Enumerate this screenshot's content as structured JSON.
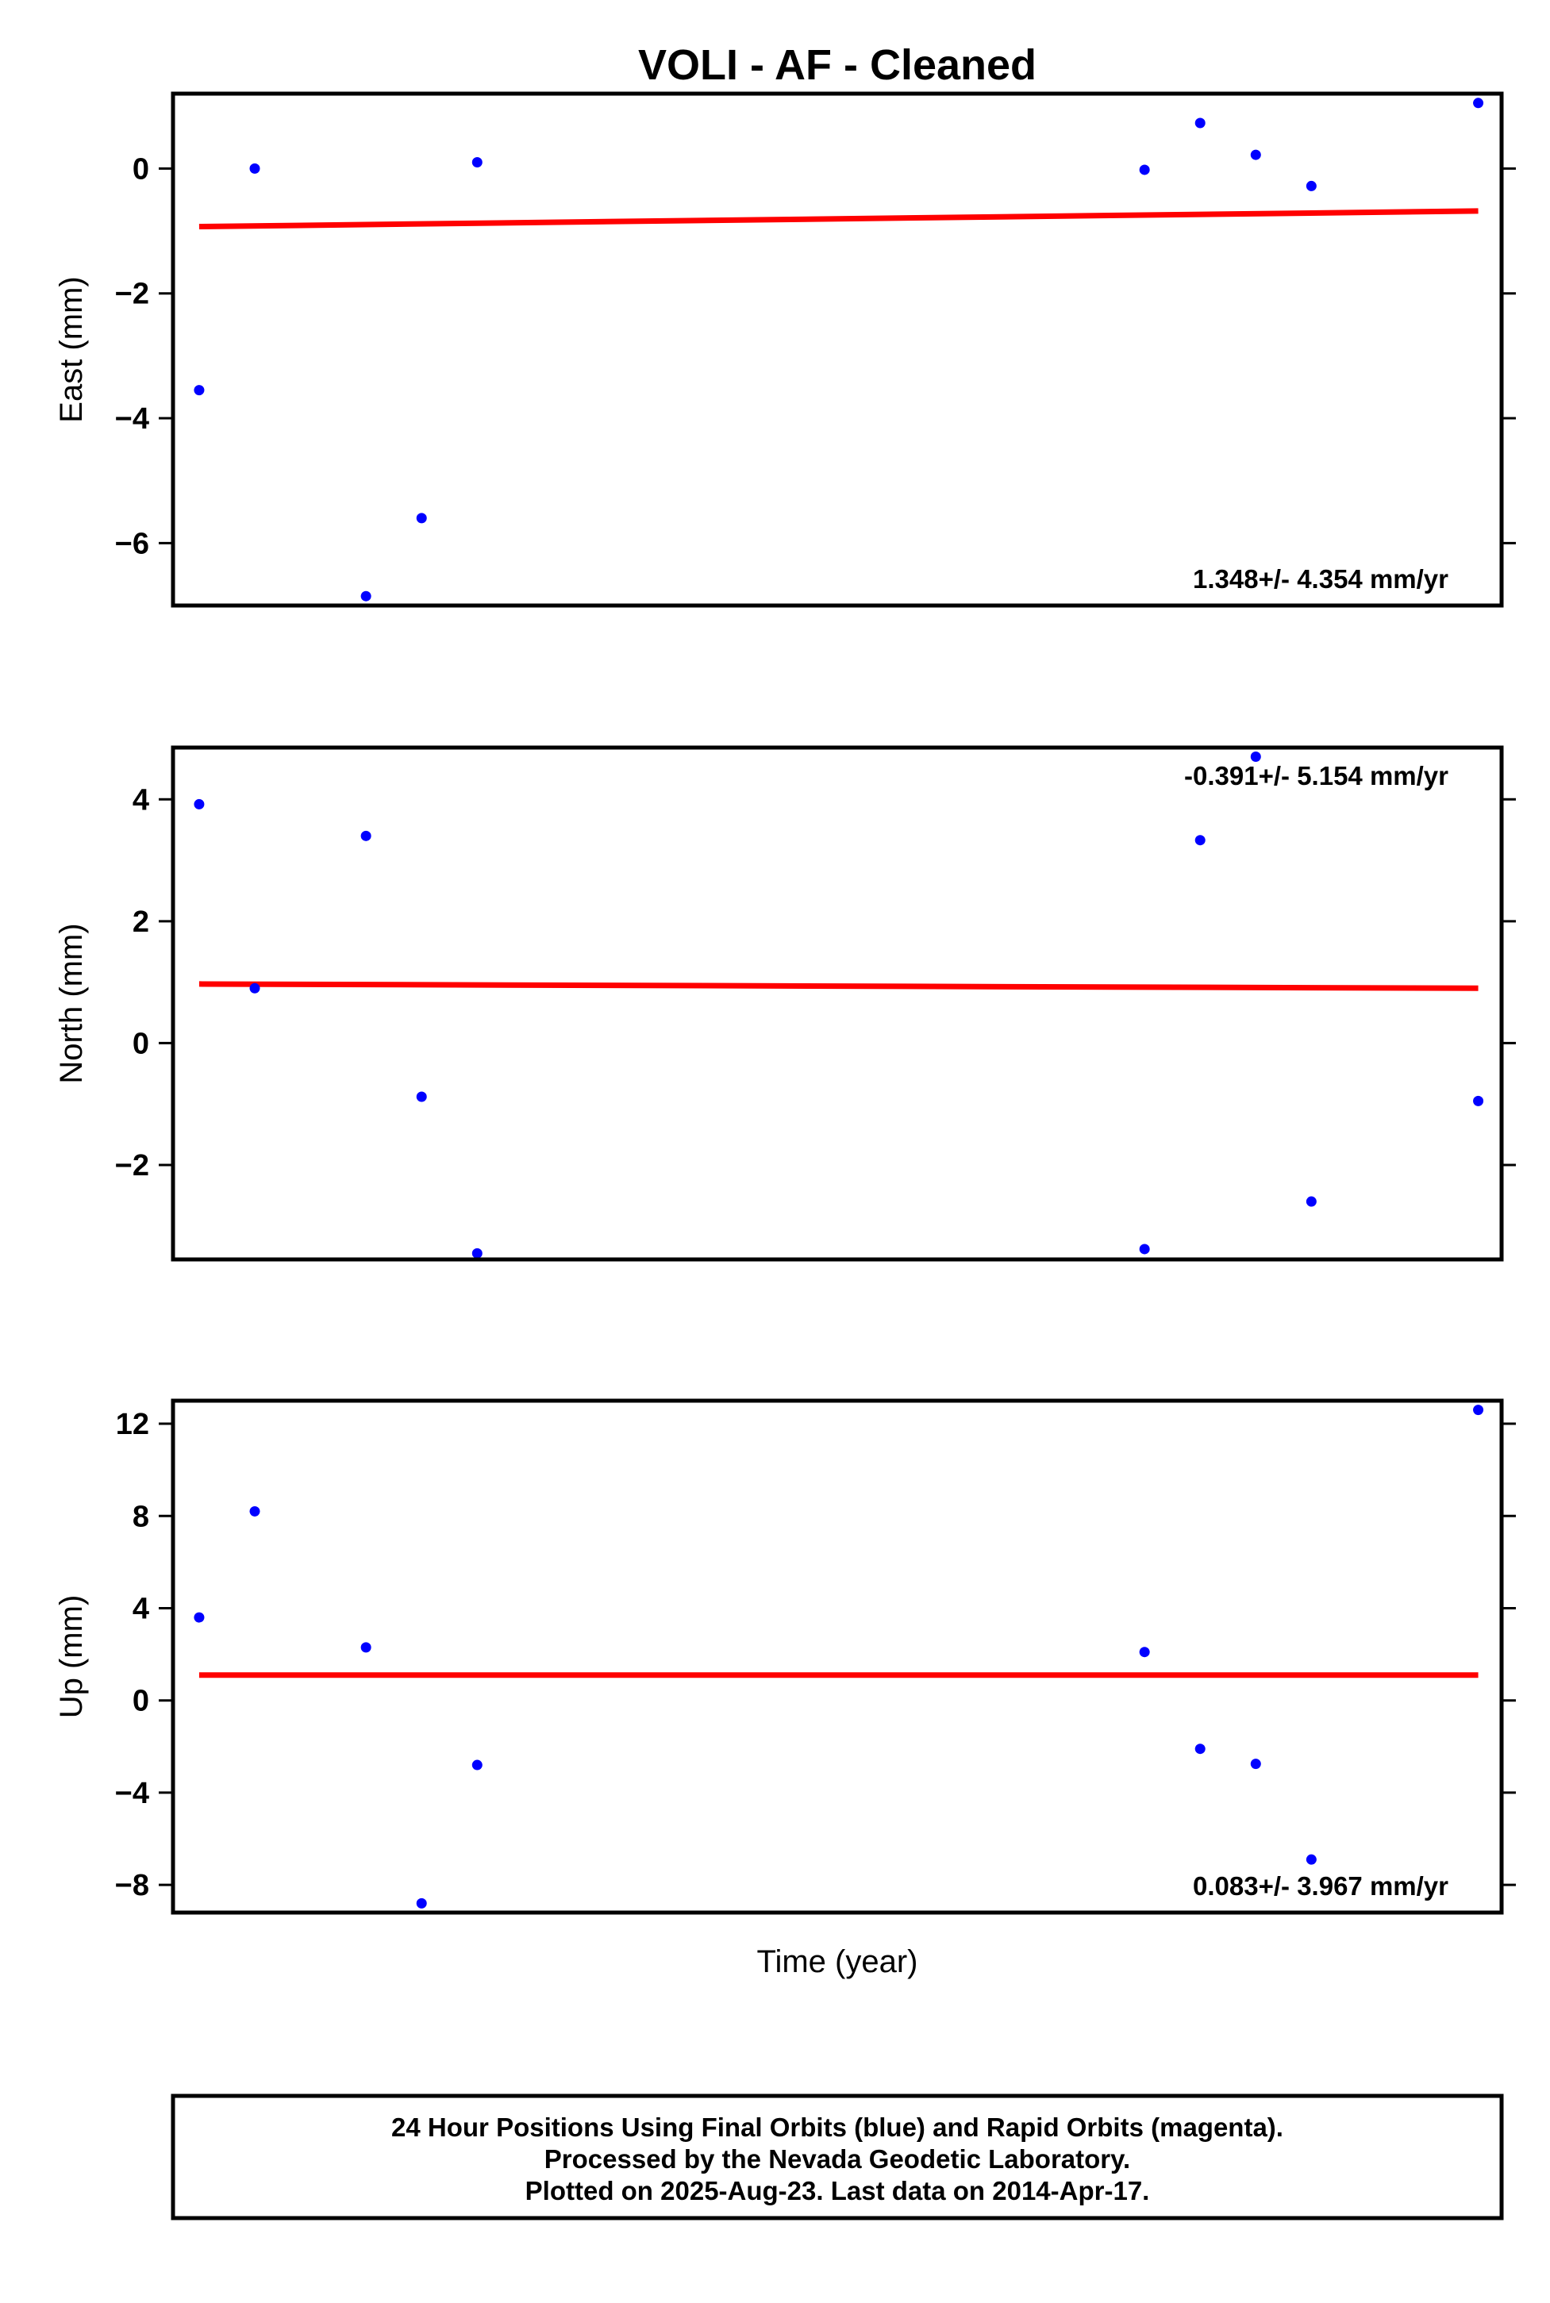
{
  "chart_data": {
    "type": "scatter",
    "title": "VOLI  - AF - Cleaned",
    "xlabel": "Time (year)",
    "x_index": [
      0,
      1,
      3,
      4,
      5,
      17,
      18,
      19,
      20,
      23
    ],
    "panels": [
      {
        "id": "east",
        "ylabel": "East (mm)",
        "ylim": [
          -7.0,
          1.2
        ],
        "yticks": [
          0,
          -2,
          -4,
          -6
        ],
        "ytick_labels": [
          "0",
          "−2",
          "−4",
          "−6"
        ],
        "values": [
          -3.55,
          0.0,
          -6.85,
          -5.6,
          0.1,
          -0.02,
          0.73,
          0.22,
          -0.28,
          1.05
        ],
        "trend": [
          -0.93,
          -0.68
        ],
        "rate_label": "1.348+/- 4.354 mm/yr",
        "rate_position": "bottom-right"
      },
      {
        "id": "north",
        "ylabel": "North (mm)",
        "ylim": [
          -3.55,
          4.85
        ],
        "yticks": [
          4,
          2,
          0,
          -2
        ],
        "ytick_labels": [
          "4",
          "2",
          "0",
          "−2"
        ],
        "values": [
          3.92,
          0.9,
          3.4,
          -0.88,
          -3.45,
          -3.38,
          3.33,
          4.7,
          -2.6,
          -0.95
        ],
        "trend": [
          0.97,
          0.9
        ],
        "rate_label": "-0.391+/- 5.154 mm/yr",
        "rate_position": "top-right"
      },
      {
        "id": "up",
        "ylabel": "Up (mm)",
        "ylim": [
          -9.2,
          13.0
        ],
        "yticks": [
          12,
          8,
          4,
          0,
          -4,
          -8
        ],
        "ytick_labels": [
          "12",
          "8",
          "4",
          "0",
          "−4",
          "−8"
        ],
        "values": [
          3.6,
          8.2,
          2.3,
          -8.8,
          -2.8,
          2.1,
          -2.1,
          -2.75,
          -6.9,
          12.6
        ],
        "trend": [
          1.1,
          1.1
        ],
        "rate_label": "0.083+/- 3.967 mm/yr",
        "rate_position": "bottom-right"
      }
    ],
    "point_color": "#0000ff",
    "trend_color": "#ff0000"
  },
  "footer": {
    "line1": "24 Hour Positions Using Final Orbits (blue) and Rapid Orbits (magenta).",
    "line2": "Processed by the Nevada Geodetic Laboratory.",
    "line3": "Plotted on 2025-Aug-23. Last data on 2014-Apr-17."
  }
}
